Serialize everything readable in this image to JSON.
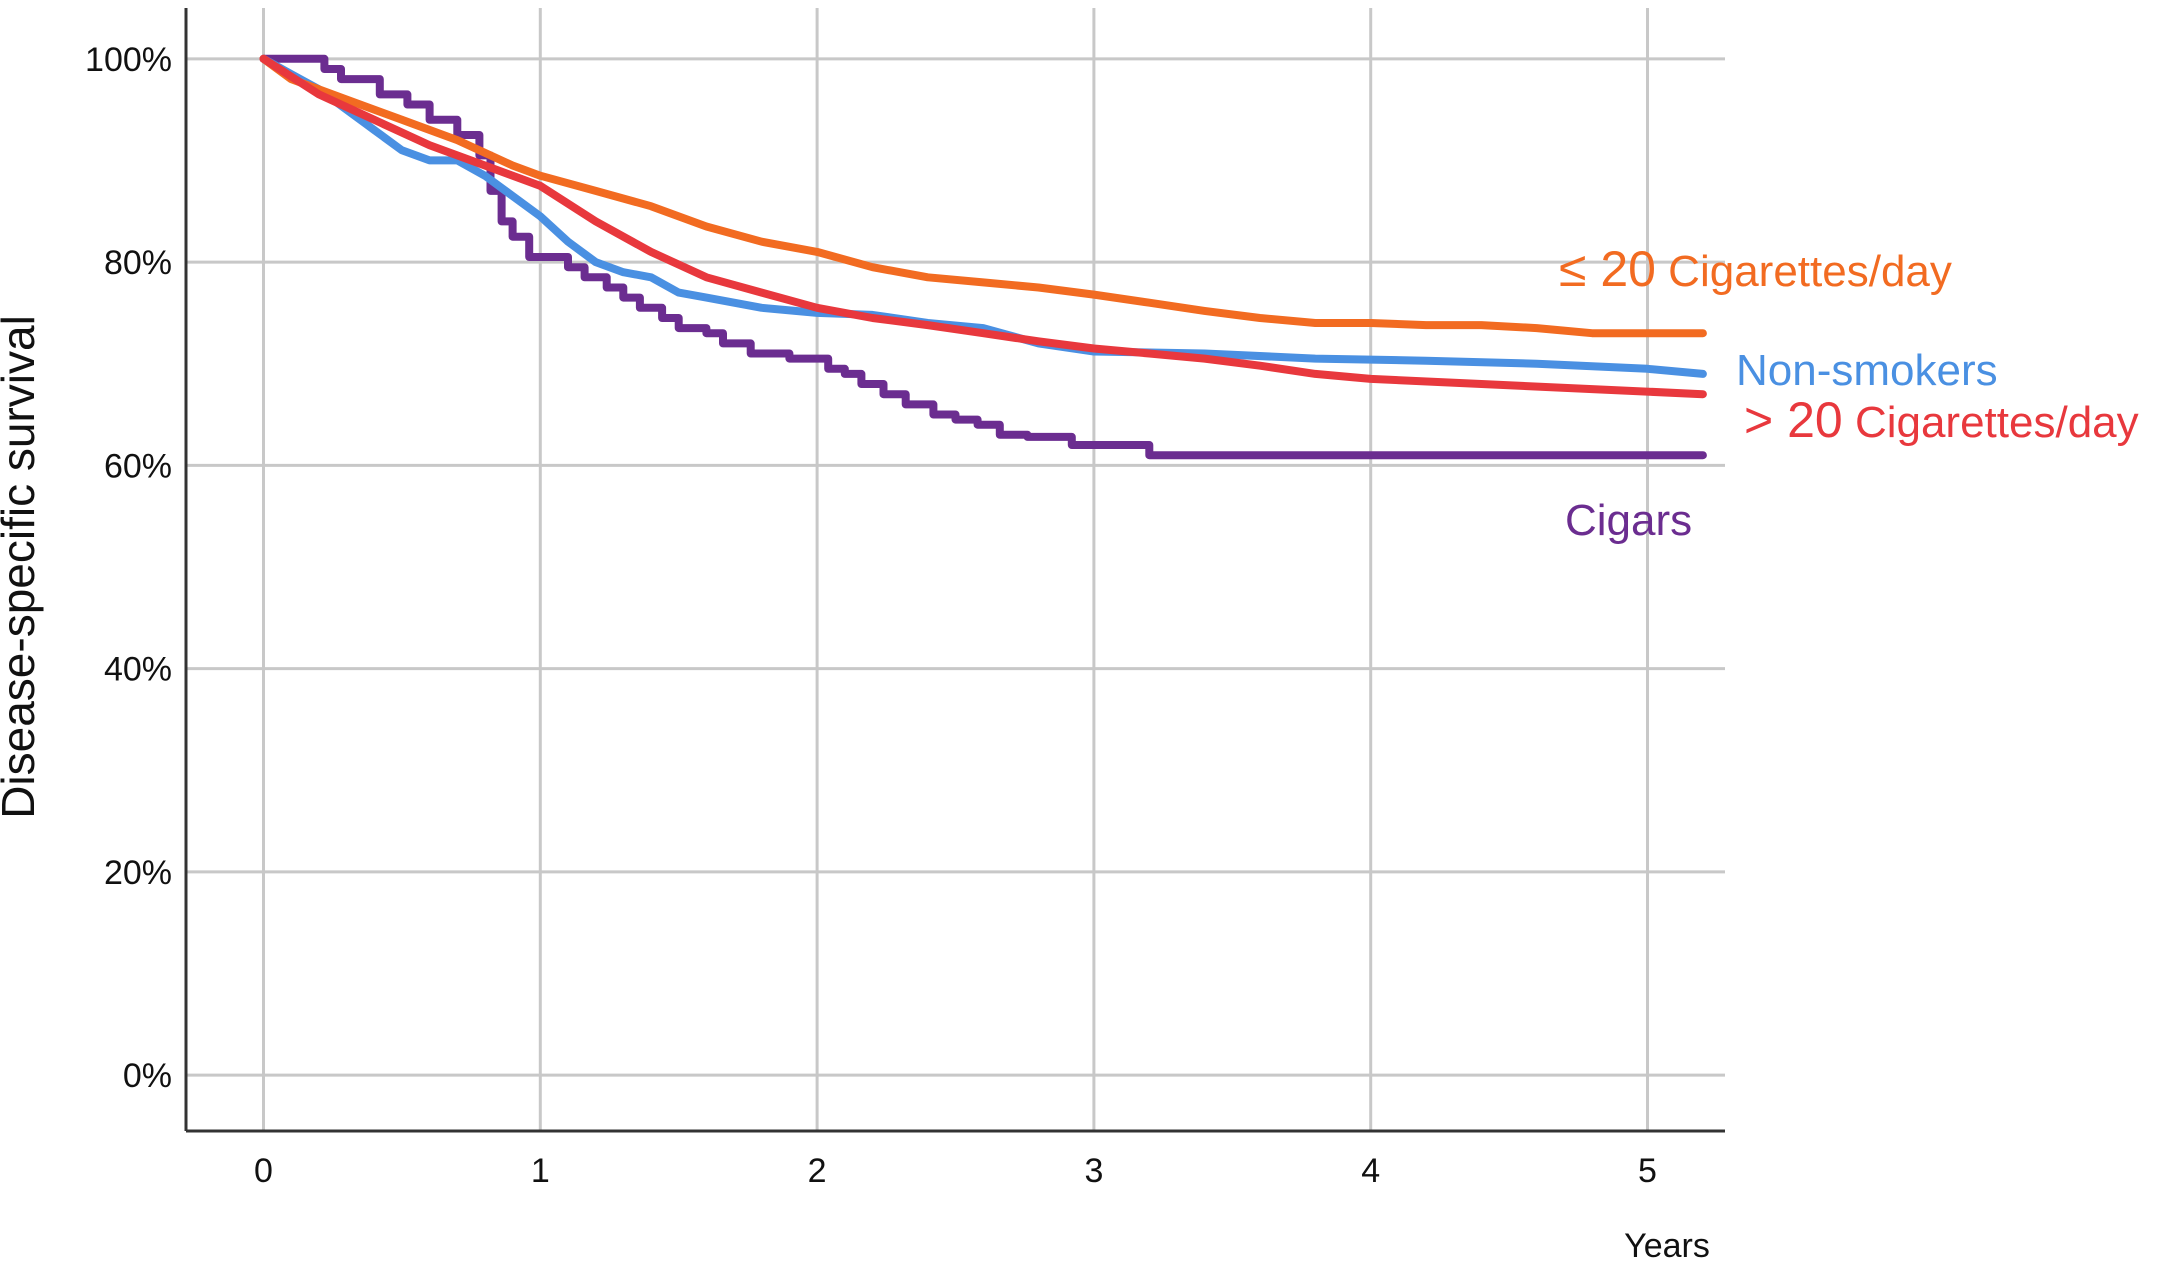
{
  "chart_data": {
    "type": "line",
    "title": "",
    "xlabel": "Years",
    "ylabel": "Disease-specific survival",
    "xlim": [
      -0.28,
      5.28
    ],
    "ylim": [
      -0.055,
      1.05
    ],
    "xticks": [
      0,
      1,
      2,
      3,
      4,
      5
    ],
    "xtick_labels": [
      "0",
      "1",
      "2",
      "3",
      "4",
      "5"
    ],
    "yticks": [
      0,
      0.2,
      0.4,
      0.6,
      0.8,
      1.0
    ],
    "ytick_labels": [
      "0%",
      "20%",
      "40%",
      "60%",
      "80%",
      "100%"
    ],
    "grid": true,
    "legend": "inline-right",
    "series": [
      {
        "name": "≤ 20 Cigarettes/day",
        "label_parts": [
          "≤ 20",
          " Cigarettes/day"
        ],
        "color": "#f26b21",
        "step": false,
        "x": [
          0,
          0.1,
          0.3,
          0.5,
          0.7,
          0.9,
          1.0,
          1.2,
          1.4,
          1.6,
          1.8,
          2.0,
          2.2,
          2.4,
          2.6,
          2.8,
          3.0,
          3.2,
          3.4,
          3.6,
          3.8,
          4.0,
          4.2,
          4.4,
          4.6,
          4.8,
          5.0,
          5.2
        ],
        "y": [
          1.0,
          0.98,
          0.96,
          0.94,
          0.92,
          0.895,
          0.885,
          0.87,
          0.855,
          0.835,
          0.82,
          0.81,
          0.795,
          0.785,
          0.78,
          0.775,
          0.768,
          0.76,
          0.752,
          0.745,
          0.74,
          0.74,
          0.738,
          0.738,
          0.735,
          0.73,
          0.73,
          0.73
        ]
      },
      {
        "name": "Non-smokers",
        "label_parts": [
          "Non-smokers"
        ],
        "color": "#4a90e2",
        "step": false,
        "x": [
          0,
          0.1,
          0.2,
          0.3,
          0.4,
          0.5,
          0.6,
          0.7,
          0.8,
          0.9,
          1.0,
          1.1,
          1.2,
          1.3,
          1.4,
          1.5,
          1.6,
          1.8,
          2.0,
          2.2,
          2.4,
          2.6,
          2.8,
          3.0,
          3.4,
          3.8,
          4.2,
          4.6,
          5.0,
          5.2
        ],
        "y": [
          1.0,
          0.985,
          0.97,
          0.95,
          0.93,
          0.91,
          0.9,
          0.9,
          0.885,
          0.865,
          0.845,
          0.82,
          0.8,
          0.79,
          0.785,
          0.77,
          0.765,
          0.755,
          0.75,
          0.748,
          0.74,
          0.735,
          0.72,
          0.712,
          0.71,
          0.705,
          0.703,
          0.7,
          0.695,
          0.69
        ]
      },
      {
        "name": "> 20 Cigarettes/day",
        "label_parts": [
          "> 20",
          " Cigarettes/day"
        ],
        "color": "#e8383d",
        "step": false,
        "x": [
          0,
          0.2,
          0.4,
          0.6,
          0.8,
          1.0,
          1.2,
          1.4,
          1.6,
          1.8,
          2.0,
          2.2,
          2.4,
          2.6,
          2.8,
          3.0,
          3.2,
          3.4,
          3.6,
          3.8,
          4.0,
          4.4,
          4.8,
          5.2
        ],
        "y": [
          1.0,
          0.965,
          0.94,
          0.915,
          0.895,
          0.875,
          0.84,
          0.81,
          0.785,
          0.77,
          0.755,
          0.745,
          0.738,
          0.73,
          0.722,
          0.715,
          0.71,
          0.705,
          0.698,
          0.69,
          0.685,
          0.68,
          0.675,
          0.67
        ]
      },
      {
        "name": "Cigars",
        "label_parts": [
          "Cigars"
        ],
        "color": "#6b2d90",
        "step": true,
        "x": [
          0,
          0.22,
          0.28,
          0.42,
          0.52,
          0.6,
          0.7,
          0.78,
          0.82,
          0.86,
          0.9,
          0.96,
          1.1,
          1.16,
          1.24,
          1.3,
          1.36,
          1.44,
          1.5,
          1.6,
          1.66,
          1.76,
          1.9,
          2.04,
          2.1,
          2.16,
          2.24,
          2.32,
          2.42,
          2.5,
          2.58,
          2.66,
          2.76,
          2.92,
          3.2,
          5.2
        ],
        "y": [
          1.0,
          0.99,
          0.98,
          0.965,
          0.955,
          0.94,
          0.925,
          0.905,
          0.87,
          0.84,
          0.825,
          0.805,
          0.795,
          0.785,
          0.775,
          0.765,
          0.755,
          0.745,
          0.735,
          0.73,
          0.72,
          0.71,
          0.705,
          0.695,
          0.69,
          0.68,
          0.67,
          0.66,
          0.65,
          0.645,
          0.64,
          0.63,
          0.628,
          0.62,
          0.61,
          0.61
        ]
      }
    ]
  }
}
